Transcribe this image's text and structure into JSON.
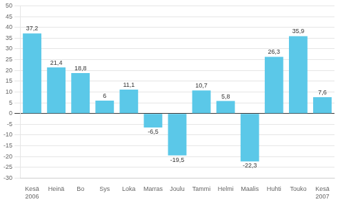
{
  "chart_data": {
    "type": "bar",
    "categories": [
      "Kesä\n2006",
      "Heinä",
      "Bo",
      "Sys",
      "Loka",
      "Marras",
      "Joulu",
      "Tammi",
      "Helmi",
      "Maalis",
      "Huhti",
      "Touko",
      "Kesä\n2007"
    ],
    "values": [
      37.2,
      21.4,
      18.8,
      6.0,
      11.1,
      -6.5,
      -19.5,
      10.7,
      5.8,
      -22.3,
      26.3,
      35.9,
      7.6
    ],
    "value_labels": [
      "37,2",
      "21,4",
      "18,8",
      "6",
      "11,1",
      "-6,5",
      "-19,5",
      "10,7",
      "5,8",
      "-22,3",
      "26,3",
      "35,9",
      "7,6"
    ],
    "color": "#5BC8E8",
    "ylim": [
      -30,
      50
    ],
    "yticks": [
      -30,
      -25,
      -20,
      -15,
      -10,
      -5,
      0,
      5,
      10,
      15,
      20,
      25,
      30,
      35,
      40,
      45,
      50
    ],
    "grid": true,
    "data_labels": true
  }
}
